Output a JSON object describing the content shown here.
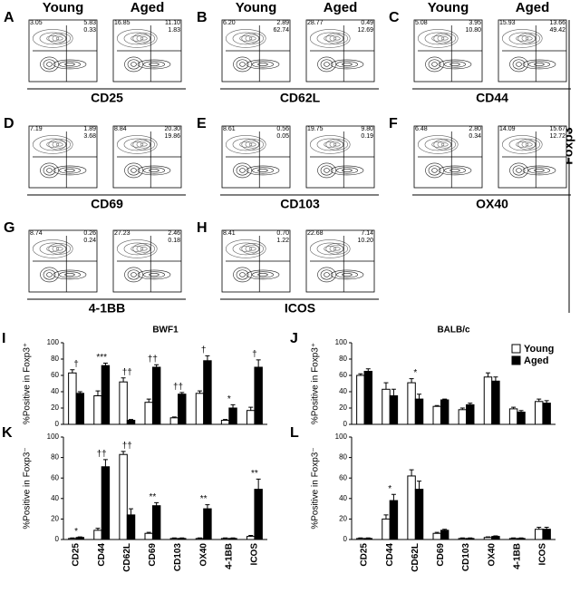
{
  "column_headers": [
    "Young",
    "Aged"
  ],
  "side_label": "Foxp3",
  "flow_panels": [
    {
      "letter": "A",
      "marker": "CD25",
      "young": [
        "3.05",
        "5.83",
        "0.33"
      ],
      "aged": [
        "16.85",
        "11.10",
        "1.83"
      ]
    },
    {
      "letter": "B",
      "marker": "CD62L",
      "young": [
        "6.20",
        "2.89",
        "62.74"
      ],
      "aged": [
        "28.77",
        "0.49",
        "12.69"
      ]
    },
    {
      "letter": "C",
      "marker": "CD44",
      "young": [
        "5.08",
        "3.95",
        "10.80"
      ],
      "aged": [
        "15.93",
        "13.66",
        "49.42"
      ]
    },
    {
      "letter": "D",
      "marker": "CD69",
      "young": [
        "7.19",
        "1.89",
        "3.68"
      ],
      "aged": [
        "8.84",
        "20.30",
        "19.86"
      ]
    },
    {
      "letter": "E",
      "marker": "CD103",
      "young": [
        "8.61",
        "0.56",
        "0.05"
      ],
      "aged": [
        "19.75",
        "9.80",
        "0.19"
      ]
    },
    {
      "letter": "F",
      "marker": "OX40",
      "young": [
        "6.48",
        "2.80",
        "0.34"
      ],
      "aged": [
        "14.09",
        "15.67",
        "12.72"
      ]
    },
    {
      "letter": "G",
      "marker": "4-1BB",
      "young": [
        "8.74",
        "0.26",
        "0.24"
      ],
      "aged": [
        "27.23",
        "2.46",
        "0.18"
      ]
    },
    {
      "letter": "H",
      "marker": "ICOS",
      "young": [
        "8.41",
        "0.70",
        "1.22"
      ],
      "aged": [
        "22.68",
        "7.14",
        "10.20"
      ]
    }
  ],
  "chart_data": [
    {
      "type": "bar",
      "panel": "I",
      "title": "BWF1",
      "y_label": "%Positive in Foxp3⁺",
      "ylim": [
        0,
        100
      ],
      "yticks": [
        0,
        20,
        40,
        60,
        80,
        100
      ],
      "series": [
        {
          "color": "#ffffff",
          "values": [
            63,
            35,
            52,
            27,
            8,
            38,
            5,
            17
          ],
          "errors": [
            4,
            6,
            5,
            4,
            1,
            3,
            1,
            4
          ]
        },
        {
          "color": "#000000",
          "values": [
            38,
            72,
            5,
            70,
            37,
            78,
            20,
            70
          ],
          "errors": [
            2,
            3,
            1,
            3,
            2,
            6,
            4,
            9
          ]
        }
      ],
      "significance": [
        "†",
        "***",
        "††",
        "††",
        "††",
        "†",
        "*",
        "†"
      ]
    },
    {
      "type": "bar",
      "panel": "J",
      "title": "BALB/c",
      "y_label": "%Positive in Foxp3⁺",
      "ylim": [
        0,
        100
      ],
      "yticks": [
        0,
        20,
        40,
        60,
        80,
        100
      ],
      "legend": "upper right",
      "series": [
        {
          "name": "Young",
          "color": "#ffffff",
          "values": [
            60,
            43,
            51,
            22,
            18,
            58,
            19,
            28
          ],
          "errors": [
            2,
            8,
            5,
            1,
            2,
            5,
            2,
            3
          ]
        },
        {
          "name": "Aged",
          "color": "#000000",
          "values": [
            65,
            35,
            31,
            30,
            24,
            53,
            15,
            26
          ],
          "errors": [
            3,
            8,
            6,
            1,
            2,
            5,
            2,
            3
          ]
        }
      ],
      "significance": [
        null,
        null,
        "*",
        null,
        null,
        null,
        null,
        null
      ]
    },
    {
      "type": "bar",
      "panel": "K",
      "y_label": "%Positive in Foxp3⁻",
      "categories": [
        "CD25",
        "CD44",
        "CD62L",
        "CD69",
        "CD103",
        "OX40",
        "4-1BB",
        "ICOS"
      ],
      "ylim": [
        0,
        100
      ],
      "yticks": [
        0,
        20,
        40,
        60,
        80,
        100
      ],
      "series": [
        {
          "color": "#ffffff",
          "values": [
            1,
            9,
            83,
            6,
            1,
            1,
            1,
            3
          ],
          "errors": [
            0.5,
            2,
            3,
            1,
            0.5,
            0.5,
            0.5,
            1
          ]
        },
        {
          "color": "#000000",
          "values": [
            2,
            71,
            24,
            33,
            1,
            30,
            1,
            49
          ],
          "errors": [
            0.5,
            7,
            6,
            3,
            0.5,
            4,
            0.5,
            10
          ]
        }
      ],
      "significance": [
        "*",
        "††",
        "††",
        "**",
        null,
        "**",
        null,
        "**"
      ]
    },
    {
      "type": "bar",
      "panel": "L",
      "y_label": "%Positive in Foxp3⁻",
      "categories": [
        "CD25",
        "CD44",
        "CD62L",
        "CD69",
        "CD103",
        "OX40",
        "4-1BB",
        "ICOS"
      ],
      "ylim": [
        0,
        100
      ],
      "yticks": [
        0,
        20,
        40,
        60,
        80,
        100
      ],
      "series": [
        {
          "color": "#ffffff",
          "values": [
            1,
            20,
            62,
            6,
            1,
            2,
            1,
            10
          ],
          "errors": [
            0.5,
            4,
            6,
            1,
            0.5,
            0.5,
            0.5,
            2
          ]
        },
        {
          "color": "#000000",
          "values": [
            1,
            38,
            49,
            9,
            1,
            3,
            1,
            10
          ],
          "errors": [
            0.5,
            6,
            8,
            1,
            0.5,
            0.5,
            0.5,
            2
          ]
        }
      ],
      "significance": [
        null,
        "*",
        null,
        null,
        null,
        null,
        null,
        null
      ]
    }
  ]
}
